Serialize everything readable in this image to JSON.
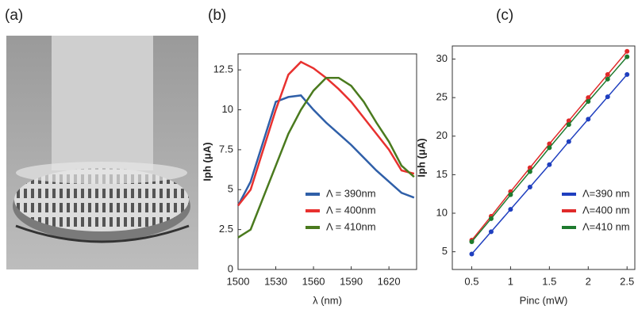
{
  "image_panel": {
    "label": "(a)"
  },
  "chart_data": [
    {
      "type": "line",
      "panel_label": "(b)",
      "x_label": "λ (nm)",
      "y_label": "Iph (μA)",
      "x": [
        1500,
        1510,
        1520,
        1530,
        1540,
        1550,
        1560,
        1570,
        1580,
        1590,
        1600,
        1610,
        1620,
        1630,
        1640
      ],
      "series": [
        {
          "name": "Λ = 390nm",
          "color": "#2f5fa8",
          "values": [
            4,
            5.5,
            8,
            10.5,
            10.8,
            10.9,
            10,
            9.2,
            8.5,
            7.8,
            7,
            6.2,
            5.5,
            4.8,
            4.5
          ]
        },
        {
          "name": "Λ = 400nm",
          "color": "#e8312f",
          "values": [
            4,
            5,
            7.5,
            10,
            12.2,
            13,
            12.6,
            12,
            11.3,
            10.5,
            9.5,
            8.5,
            7.5,
            6.2,
            6
          ]
        },
        {
          "name": "Λ = 410nm",
          "color": "#4a7a1e",
          "values": [
            2,
            2.5,
            4.5,
            6.5,
            8.5,
            10,
            11.2,
            12,
            12,
            11.5,
            10.5,
            9.2,
            8,
            6.5,
            5.8
          ]
        }
      ],
      "xlim": [
        1500,
        1642
      ],
      "xticks": [
        1500,
        1530,
        1560,
        1590,
        1620
      ],
      "ylim": [
        0,
        13.5
      ],
      "yticks": [
        0,
        2.5,
        5,
        7.5,
        10,
        12.5
      ],
      "markers": false,
      "legend": "lower-right"
    },
    {
      "type": "line",
      "panel_label": "(c)",
      "x_label": "Pinc (mW)",
      "y_label": "Iph (μA)",
      "x": [
        0.5,
        0.75,
        1,
        1.25,
        1.5,
        1.75,
        2,
        2.25,
        2.5
      ],
      "series": [
        {
          "name": "Λ=390 nm",
          "color": "#1f3fbf",
          "values": [
            4.7,
            7.6,
            10.5,
            13.4,
            16.3,
            19.3,
            22.2,
            25.1,
            28
          ]
        },
        {
          "name": "Λ=400 nm",
          "color": "#e02a2a",
          "values": [
            6.5,
            9.6,
            12.8,
            15.9,
            19,
            22,
            25,
            28,
            31
          ]
        },
        {
          "name": "Λ=410 nm",
          "color": "#1e7a2e",
          "values": [
            6.3,
            9.3,
            12.4,
            15.4,
            18.5,
            21.5,
            24.5,
            27.4,
            30.3
          ]
        }
      ],
      "xlim": [
        0.25,
        2.6
      ],
      "xticks": [
        0.5,
        1,
        1.5,
        2,
        2.5
      ],
      "ylim": [
        2.7,
        31.7
      ],
      "yticks": [
        5,
        10,
        15,
        20,
        25,
        30
      ],
      "markers": true,
      "legend": "lower-right"
    }
  ]
}
